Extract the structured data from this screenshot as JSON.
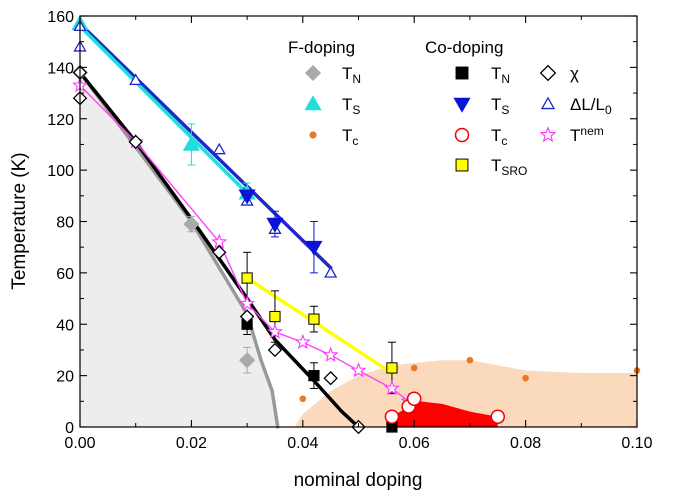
{
  "colors": {
    "F_TN": "#aaaaaa",
    "F_TS": "#22dddd",
    "F_Tc": "#ee7722",
    "Co_TN": "#000000",
    "Co_TS": "#0a14d6",
    "Co_Tc": "#ee0000",
    "chi": "#000000",
    "dL": "#1e28c8",
    "Tnem": "#ff33ff",
    "TSRO": "#ffff00",
    "fit_TN": "#000000",
    "fit_Fdop": "#999999",
    "fit_TS": "#1e28c8",
    "fit_TSRO": "#ffff00",
    "fit_Tnem": "#ff44ff",
    "shade_afm": "#ededed",
    "shade_sc": "#fbd9bd",
    "dome_co": "#ff0000"
  },
  "chart_data": {
    "type": "scatter",
    "xlabel": "nominal doping",
    "ylabel": "Temperature (K)",
    "xlim": [
      0.0,
      0.1
    ],
    "ylim": [
      0,
      160
    ],
    "xticks": [
      "0.00",
      "0.02",
      "0.04",
      "0.06",
      "0.08",
      "0.10"
    ],
    "yticks": [
      "0",
      "20",
      "40",
      "60",
      "80",
      "100",
      "120",
      "140",
      "160"
    ],
    "legend_groups": {
      "F": "F-doping",
      "Co": "Co-doping"
    },
    "legend_items": {
      "F_TN": {
        "main": "T",
        "sub": "N"
      },
      "F_TS": {
        "main": "T",
        "sub": "S"
      },
      "F_Tc": {
        "main": "T",
        "sub": "c"
      },
      "Co_TN": {
        "main": "T",
        "sub": "N"
      },
      "Co_TS": {
        "main": "T",
        "sub": "S"
      },
      "Co_Tc": {
        "main": "T",
        "sub": "c"
      },
      "TSRO": {
        "main": "T",
        "sub": "SRO"
      },
      "chi": {
        "main": "χ"
      },
      "dL": {
        "main": "ΔL/L",
        "sub": "0"
      },
      "Tnem": {
        "main": "T",
        "sup": "nem"
      }
    },
    "series": [
      {
        "key": "F_TN",
        "name": "F-doping T_N",
        "marker": "diamond",
        "filled": true,
        "points": [
          {
            "x": 0.0,
            "y": 138
          },
          {
            "x": 0.02,
            "y": 79,
            "err": 3
          },
          {
            "x": 0.03,
            "y": 26,
            "err": 5
          }
        ]
      },
      {
        "key": "F_TS",
        "name": "F-doping T_S",
        "marker": "triangle-up",
        "filled": true,
        "points": [
          {
            "x": 0.0,
            "y": 157
          },
          {
            "x": 0.02,
            "y": 110,
            "err": 8
          },
          {
            "x": 0.03,
            "y": 91,
            "err": 4
          }
        ]
      },
      {
        "key": "F_Tc",
        "name": "F-doping T_c",
        "marker": "circle-small",
        "filled": true,
        "points": [
          {
            "x": 0.04,
            "y": 11
          },
          {
            "x": 0.06,
            "y": 23
          },
          {
            "x": 0.07,
            "y": 26
          },
          {
            "x": 0.08,
            "y": 19
          },
          {
            "x": 0.1,
            "y": 22
          }
        ]
      },
      {
        "key": "Co_TN",
        "name": "Co-doping T_N",
        "marker": "square",
        "filled": true,
        "points": [
          {
            "x": 0.03,
            "y": 40,
            "err": 4
          },
          {
            "x": 0.042,
            "y": 20,
            "err": 5
          },
          {
            "x": 0.056,
            "y": 0
          }
        ]
      },
      {
        "key": "Co_TS",
        "name": "Co-doping T_S",
        "marker": "triangle-down",
        "filled": true,
        "points": [
          {
            "x": 0.03,
            "y": 90,
            "err": 3
          },
          {
            "x": 0.035,
            "y": 79,
            "err": 5
          },
          {
            "x": 0.042,
            "y": 70,
            "err": 10
          }
        ]
      },
      {
        "key": "Co_Tc",
        "name": "Co-doping T_c",
        "marker": "circle",
        "filled": false,
        "points": [
          {
            "x": 0.056,
            "y": 4
          },
          {
            "x": 0.059,
            "y": 8
          },
          {
            "x": 0.06,
            "y": 11
          },
          {
            "x": 0.075,
            "y": 4
          }
        ]
      },
      {
        "key": "TSRO",
        "name": "T_SRO",
        "marker": "square",
        "filled": true,
        "points": [
          {
            "x": 0.03,
            "y": 58,
            "err": 10
          },
          {
            "x": 0.035,
            "y": 43,
            "err": 10
          },
          {
            "x": 0.042,
            "y": 42,
            "err": 5
          },
          {
            "x": 0.056,
            "y": 23,
            "err": 10
          }
        ]
      },
      {
        "key": "chi",
        "name": "χ",
        "marker": "diamond",
        "filled": false,
        "points": [
          {
            "x": 0.0,
            "y": 138
          },
          {
            "x": 0.0,
            "y": 128
          },
          {
            "x": 0.01,
            "y": 111
          },
          {
            "x": 0.025,
            "y": 68
          },
          {
            "x": 0.03,
            "y": 43
          },
          {
            "x": 0.035,
            "y": 30
          },
          {
            "x": 0.045,
            "y": 19
          },
          {
            "x": 0.05,
            "y": 0
          }
        ]
      },
      {
        "key": "dL",
        "name": "ΔL/L0",
        "marker": "triangle-up",
        "filled": false,
        "points": [
          {
            "x": 0.0,
            "y": 156
          },
          {
            "x": 0.0,
            "y": 148
          },
          {
            "x": 0.01,
            "y": 135
          },
          {
            "x": 0.025,
            "y": 108
          },
          {
            "x": 0.03,
            "y": 88
          },
          {
            "x": 0.035,
            "y": 77
          },
          {
            "x": 0.045,
            "y": 60
          }
        ]
      },
      {
        "key": "Tnem",
        "name": "T^nem",
        "marker": "star",
        "filled": false,
        "points": [
          {
            "x": 0.0,
            "y": 133
          },
          {
            "x": 0.01,
            "y": 111
          },
          {
            "x": 0.025,
            "y": 72
          },
          {
            "x": 0.03,
            "y": 48
          },
          {
            "x": 0.035,
            "y": 37
          },
          {
            "x": 0.04,
            "y": 33
          },
          {
            "x": 0.045,
            "y": 28
          },
          {
            "x": 0.05,
            "y": 22
          },
          {
            "x": 0.056,
            "y": 15
          },
          {
            "x": 0.059,
            "y": 10
          }
        ]
      }
    ],
    "fit_lines": [
      {
        "key": "fit_Fdop",
        "width": 3.5,
        "points": [
          [
            0.0,
            138
          ],
          [
            0.02,
            80
          ],
          [
            0.03,
            44
          ],
          [
            0.0325,
            26
          ],
          [
            0.0345,
            14
          ],
          [
            0.0355,
            0
          ]
        ]
      },
      {
        "key": "fit_TS",
        "width": 3.5,
        "points": [
          [
            0.0,
            157
          ],
          [
            0.045,
            62
          ]
        ]
      },
      {
        "key": "fit_TS_F",
        "color_key": "F_TS",
        "width": 3.5,
        "points": [
          [
            0.0,
            156
          ],
          [
            0.03,
            91
          ]
        ]
      },
      {
        "key": "fit_TN",
        "width": 3.5,
        "points": [
          [
            0.0,
            138
          ],
          [
            0.01,
            111
          ],
          [
            0.02,
            81
          ],
          [
            0.03,
            50
          ],
          [
            0.035,
            34
          ],
          [
            0.042,
            18
          ],
          [
            0.047,
            6
          ],
          [
            0.05,
            0
          ]
        ]
      },
      {
        "key": "fit_TSRO",
        "width": 3.5,
        "points": [
          [
            0.03,
            58
          ],
          [
            0.056,
            21
          ]
        ]
      },
      {
        "key": "fit_Tnem",
        "width": 1.4,
        "points": [
          [
            0.0,
            133
          ],
          [
            0.01,
            111
          ],
          [
            0.025,
            72
          ],
          [
            0.03,
            48
          ],
          [
            0.035,
            37
          ],
          [
            0.04,
            33
          ],
          [
            0.045,
            28
          ],
          [
            0.05,
            22
          ],
          [
            0.056,
            15
          ],
          [
            0.059,
            10
          ]
        ]
      }
    ],
    "regions": [
      {
        "key": "shade_afm",
        "points": [
          [
            0.0,
            138
          ],
          [
            0.02,
            80
          ],
          [
            0.03,
            44
          ],
          [
            0.0325,
            26
          ],
          [
            0.0345,
            14
          ],
          [
            0.0355,
            0
          ],
          [
            0.0,
            0
          ]
        ]
      },
      {
        "key": "shade_sc",
        "points": [
          [
            0.0385,
            0
          ],
          [
            0.04,
            5
          ],
          [
            0.045,
            14
          ],
          [
            0.05,
            20
          ],
          [
            0.056,
            24
          ],
          [
            0.065,
            26
          ],
          [
            0.07,
            26
          ],
          [
            0.08,
            22
          ],
          [
            0.09,
            21
          ],
          [
            0.1,
            21
          ],
          [
            0.1,
            0
          ]
        ]
      },
      {
        "key": "dome_co",
        "points": [
          [
            0.056,
            0
          ],
          [
            0.056,
            4
          ],
          [
            0.059,
            8
          ],
          [
            0.061,
            10
          ],
          [
            0.065,
            9
          ],
          [
            0.07,
            6
          ],
          [
            0.075,
            4
          ],
          [
            0.075,
            0
          ]
        ]
      }
    ]
  }
}
